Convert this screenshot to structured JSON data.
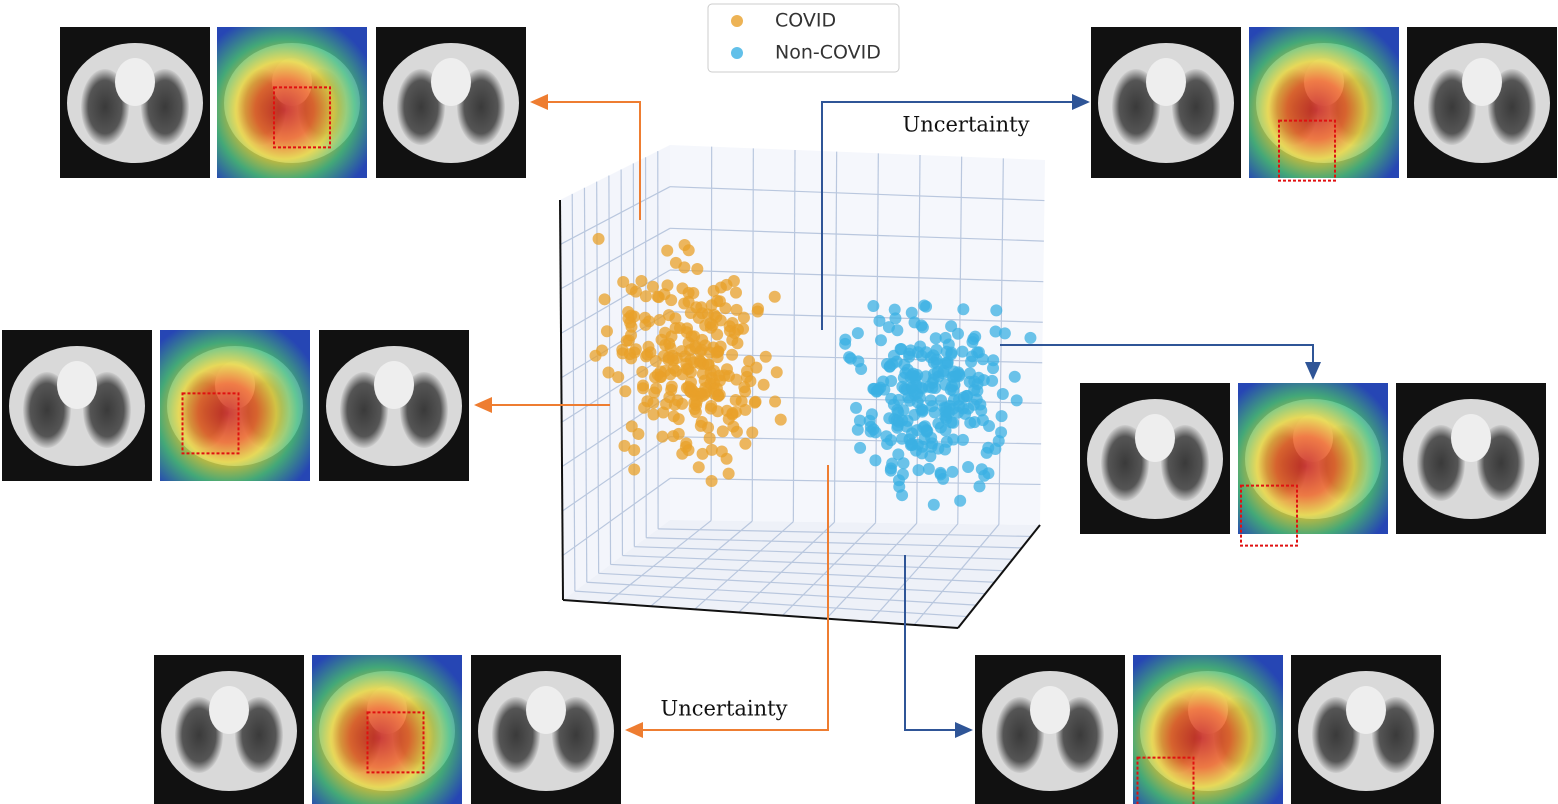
{
  "legend": {
    "entries": [
      "COVID",
      "Non-COVID"
    ]
  },
  "annotations": [
    "Uncertainty",
    "Uncertainty"
  ]
}
